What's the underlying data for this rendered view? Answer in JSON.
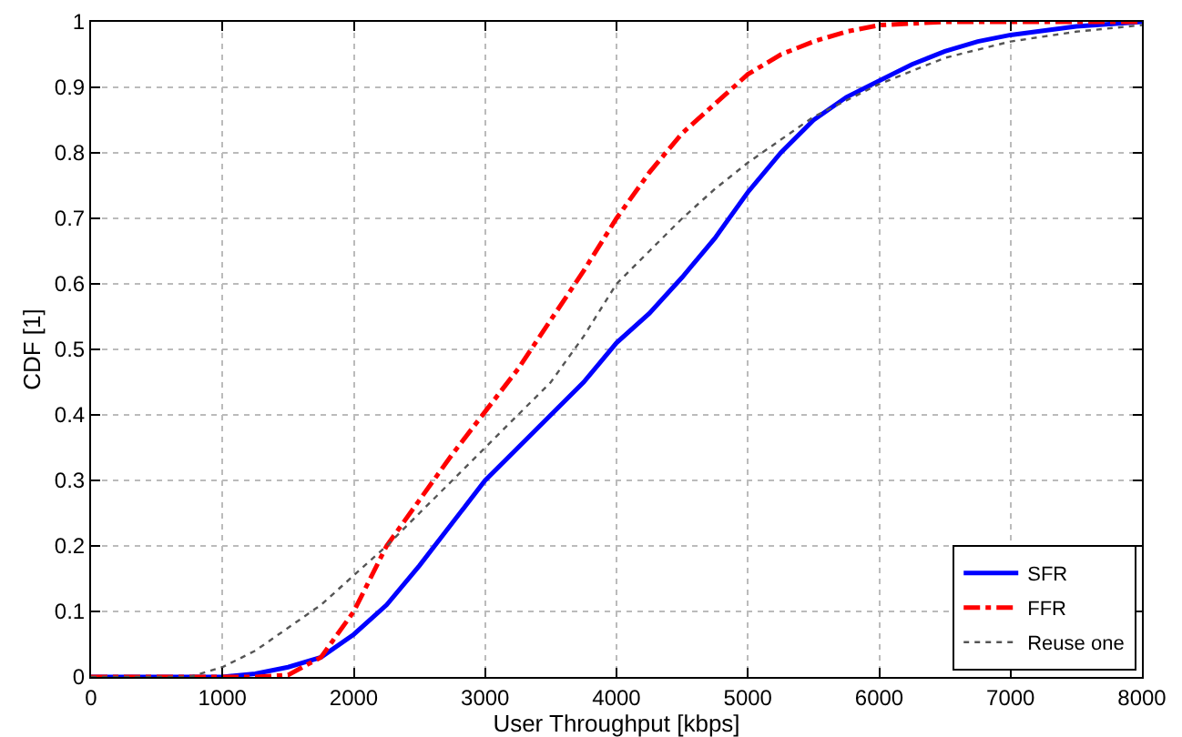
{
  "chart_data": {
    "type": "line",
    "xlabel": "User Throughput [kbps]",
    "ylabel": "CDF [1]",
    "xlim": [
      0,
      8000
    ],
    "xticks": [
      0,
      1000,
      2000,
      3000,
      4000,
      5000,
      6000,
      7000,
      8000
    ],
    "ylim": [
      0,
      1
    ],
    "yticks": [
      0,
      0.1,
      0.2,
      0.3,
      0.4,
      0.5,
      0.6,
      0.7,
      0.8,
      0.9,
      1
    ],
    "grid": true,
    "legend": "bottom right",
    "marker": "none",
    "series": [
      {
        "name": "SFR",
        "color": "#0000ff",
        "line_style": "solid",
        "x": [
          0,
          1000,
          1250,
          1500,
          1750,
          2000,
          2250,
          2500,
          2750,
          3000,
          3250,
          3500,
          3750,
          4000,
          4250,
          4500,
          4750,
          5000,
          5250,
          5500,
          5750,
          6000,
          6250,
          6500,
          6750,
          7000,
          7500,
          8000
        ],
        "values": [
          0,
          0,
          0.005,
          0.015,
          0.03,
          0.065,
          0.11,
          0.17,
          0.235,
          0.3,
          0.35,
          0.4,
          0.45,
          0.51,
          0.555,
          0.61,
          0.67,
          0.74,
          0.8,
          0.85,
          0.885,
          0.91,
          0.935,
          0.955,
          0.97,
          0.98,
          0.993,
          1
        ]
      },
      {
        "name": "FFR",
        "color": "#ff0000",
        "line_style": "dashdot",
        "x": [
          0,
          1250,
          1500,
          1750,
          2000,
          2250,
          2500,
          2750,
          3000,
          3250,
          3500,
          3750,
          4000,
          4250,
          4500,
          4750,
          5000,
          5250,
          5500,
          5750,
          6000,
          6500,
          8000
        ],
        "values": [
          0,
          0,
          0.003,
          0.03,
          0.1,
          0.2,
          0.27,
          0.34,
          0.405,
          0.47,
          0.545,
          0.62,
          0.7,
          0.77,
          0.83,
          0.875,
          0.92,
          0.95,
          0.97,
          0.985,
          0.995,
          1,
          1
        ]
      },
      {
        "name": "Reuse one",
        "color": "#555555",
        "line_style": "dotted",
        "x": [
          0,
          750,
          1000,
          1250,
          1500,
          1750,
          2000,
          2250,
          2500,
          2750,
          3000,
          3250,
          3500,
          3750,
          4000,
          4250,
          4500,
          4750,
          5000,
          5250,
          5500,
          5750,
          6000,
          6500,
          7000,
          7500,
          8000
        ],
        "values": [
          0,
          0,
          0.015,
          0.04,
          0.075,
          0.11,
          0.155,
          0.2,
          0.25,
          0.3,
          0.35,
          0.4,
          0.45,
          0.52,
          0.6,
          0.65,
          0.7,
          0.745,
          0.785,
          0.82,
          0.855,
          0.88,
          0.905,
          0.945,
          0.97,
          0.985,
          0.995
        ]
      }
    ]
  }
}
